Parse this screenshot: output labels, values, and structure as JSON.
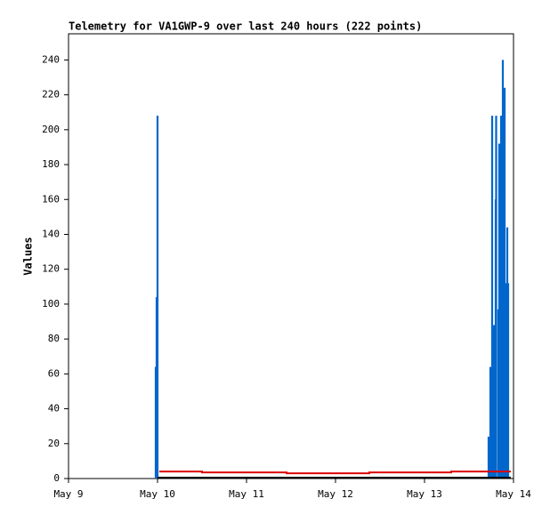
{
  "chart_data": {
    "type": "line",
    "title": "Telemetry for VA1GWP-9 over last 240 hours (222 points)",
    "y_label": "Values",
    "xlim": [
      9,
      14
    ],
    "xticks": [
      {
        "value": 9,
        "label": "May 9"
      },
      {
        "value": 10,
        "label": "May 10"
      },
      {
        "value": 11,
        "label": "May 11"
      },
      {
        "value": 12,
        "label": "May 12"
      },
      {
        "value": 13,
        "label": "May 13"
      },
      {
        "value": 14,
        "label": "May 14"
      }
    ],
    "ylim": [
      0,
      255
    ],
    "yticks": [
      0,
      20,
      40,
      60,
      80,
      100,
      120,
      140,
      160,
      180,
      200,
      220,
      240
    ],
    "series": [
      {
        "style": "impulse",
        "color": "#0066cc",
        "x": [
          9.98,
          9.99,
          10.0,
          13.72,
          13.74,
          13.76,
          13.78,
          13.8,
          13.805,
          13.83,
          13.84,
          13.86,
          13.88,
          13.9,
          13.92,
          13.93,
          13.94
        ],
        "values": [
          64,
          104,
          208,
          24,
          64,
          208,
          88,
          160,
          208,
          97,
          192,
          208,
          240,
          224,
          112,
          144,
          112
        ]
      },
      {
        "style": "line",
        "color": "#dd0000",
        "x": [
          10.02,
          10.5,
          10.5,
          11.45,
          11.45,
          12.38,
          12.38,
          13.3,
          13.3,
          13.97
        ],
        "values": [
          4,
          4,
          3.5,
          3.5,
          3,
          3,
          3.5,
          3.5,
          4,
          4
        ]
      },
      {
        "style": "line",
        "color": "#000000",
        "x": [
          10.0,
          13.97
        ],
        "values": [
          0.5,
          0.5
        ]
      }
    ]
  }
}
